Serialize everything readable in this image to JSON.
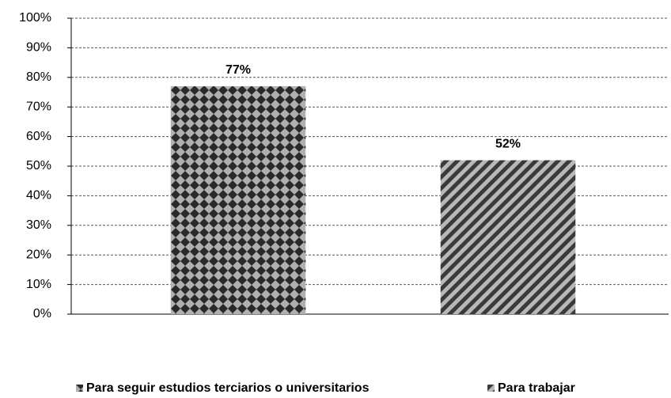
{
  "chart_data": {
    "type": "bar",
    "categories": [
      "Para seguir estudios terciarios  o universitarios",
      "Para trabajar"
    ],
    "values": [
      77,
      52
    ],
    "value_labels": [
      "77%",
      "52%"
    ],
    "ylim": [
      0,
      100
    ],
    "yticks": [
      {
        "value": 0,
        "label": "0%"
      },
      {
        "value": 10,
        "label": "10%"
      },
      {
        "value": 20,
        "label": "20%"
      },
      {
        "value": 30,
        "label": "30%"
      },
      {
        "value": 40,
        "label": "40%"
      },
      {
        "value": 50,
        "label": "50%"
      },
      {
        "value": 60,
        "label": "60%"
      },
      {
        "value": 70,
        "label": "70%"
      },
      {
        "value": 80,
        "label": "80%"
      },
      {
        "value": 90,
        "label": "90%"
      },
      {
        "value": 100,
        "label": "100%"
      }
    ],
    "grid": true,
    "legend": "bottom"
  }
}
